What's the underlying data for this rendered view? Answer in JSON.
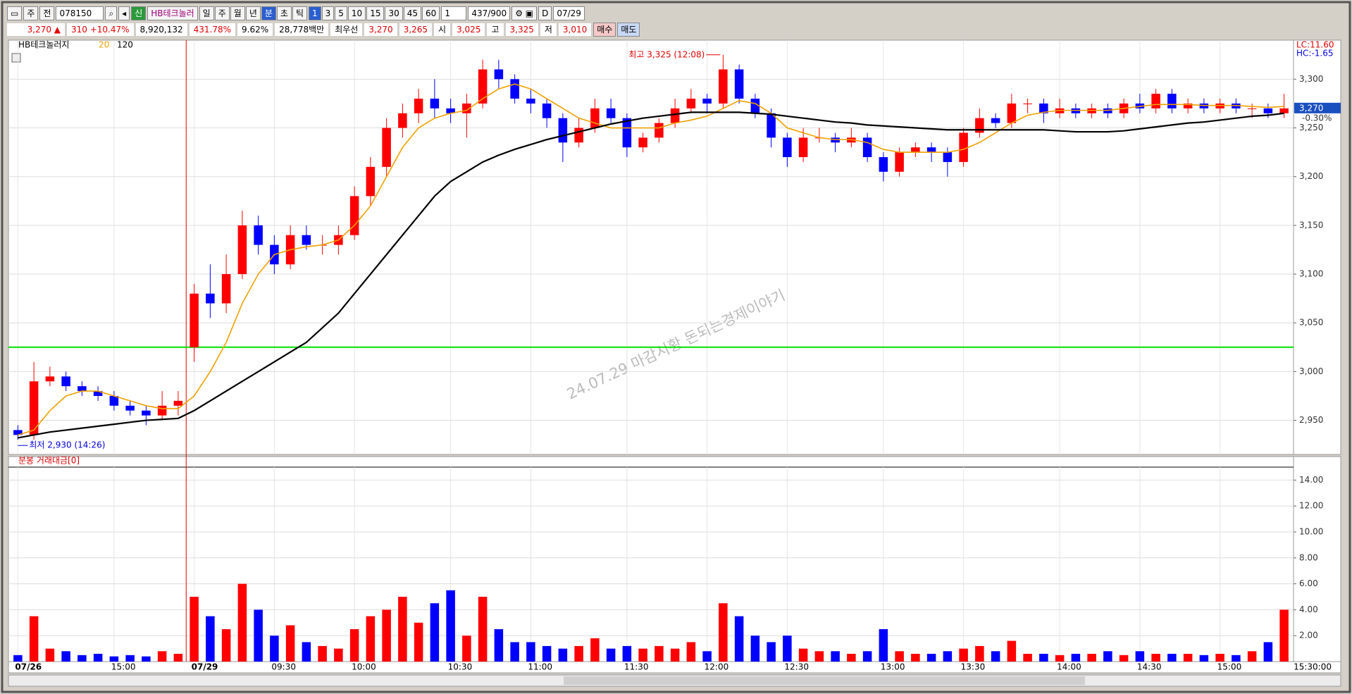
{
  "toolbar": {
    "market": "주",
    "scope": "전",
    "code": "078150",
    "tag": "신",
    "name": "HB테크놀러",
    "periods": [
      "일",
      "주",
      "월",
      "년",
      "분",
      "초",
      "틱"
    ],
    "intervals": [
      "1",
      "3",
      "5",
      "10",
      "15",
      "30",
      "45",
      "60"
    ],
    "step": "1",
    "count": "437/900",
    "d": "D",
    "date": "07/29"
  },
  "quote": {
    "price": "3,270 ▲",
    "change": "310 +10.47%",
    "volume": "8,920,132",
    "vol_ratio": "431.78%",
    "turnover": "9.62%",
    "amount": "28,778백만",
    "best_label": "최우선",
    "ask": "3,270",
    "bid": "3,265",
    "open_label": "시",
    "open": "3,025",
    "high_label": "고",
    "high": "3,325",
    "low_label": "저",
    "low": "3,010",
    "buy": "매수",
    "sell": "매도"
  },
  "chart_data": [
    {
      "type": "candlestick",
      "title": "HB테크놀러지",
      "watermark": "24.07.29 마감시황  돈되는경제이야기",
      "lc": "LC:11.60",
      "hc": "HC:-1.65",
      "last_price_label": "3,270",
      "last_change_label": "-0.30%",
      "high_note": "최고 3,325 (12:08)",
      "low_note": "최저 2,930 (14:26)",
      "axis_end_label": "15:30:00",
      "up_color": "#ff0000",
      "down_color": "#0000ff",
      "open": [
        2940,
        2935,
        2990,
        2995,
        2985,
        2980,
        2975,
        2965,
        2960,
        2955,
        2965,
        3025,
        3080,
        3070,
        3100,
        3150,
        3130,
        3110,
        3140,
        3130,
        3130,
        3140,
        3180,
        3210,
        3250,
        3265,
        3280,
        3270,
        3265,
        3275,
        3310,
        3300,
        3280,
        3275,
        3260,
        3235,
        3250,
        3270,
        3260,
        3230,
        3240,
        3255,
        3270,
        3280,
        3275,
        3310,
        3280,
        3265,
        3240,
        3220,
        3240,
        3240,
        3235,
        3240,
        3220,
        3205,
        3225,
        3230,
        3225,
        3215,
        3245,
        3260,
        3255,
        3275,
        3275,
        3265,
        3270,
        3265,
        3270,
        3265,
        3275,
        3270,
        3285,
        3270,
        3275,
        3270,
        3275,
        3270,
        3270,
        3265
      ],
      "high": [
        2945,
        3010,
        3005,
        3000,
        2990,
        2985,
        2980,
        2970,
        2965,
        2980,
        2980,
        3090,
        3110,
        3120,
        3165,
        3160,
        3140,
        3150,
        3150,
        3140,
        3150,
        3190,
        3220,
        3260,
        3275,
        3290,
        3300,
        3280,
        3285,
        3320,
        3320,
        3305,
        3290,
        3280,
        3265,
        3260,
        3280,
        3280,
        3265,
        3245,
        3260,
        3280,
        3290,
        3285,
        3325,
        3315,
        3285,
        3270,
        3245,
        3250,
        3250,
        3245,
        3250,
        3245,
        3225,
        3230,
        3235,
        3235,
        3230,
        3250,
        3270,
        3265,
        3285,
        3280,
        3280,
        3280,
        3275,
        3275,
        3275,
        3280,
        3285,
        3290,
        3290,
        3280,
        3280,
        3280,
        3280,
        3275,
        3275,
        3285
      ],
      "low": [
        2930,
        2930,
        2985,
        2980,
        2975,
        2970,
        2960,
        2955,
        2945,
        2950,
        2955,
        3010,
        3055,
        3060,
        3095,
        3120,
        3100,
        3105,
        3125,
        3120,
        3120,
        3135,
        3170,
        3200,
        3240,
        3255,
        3260,
        3255,
        3240,
        3270,
        3290,
        3275,
        3265,
        3250,
        3215,
        3230,
        3245,
        3255,
        3220,
        3225,
        3235,
        3250,
        3265,
        3265,
        3270,
        3275,
        3260,
        3230,
        3210,
        3215,
        3235,
        3225,
        3230,
        3215,
        3195,
        3200,
        3220,
        3215,
        3200,
        3210,
        3240,
        3250,
        3250,
        3265,
        3255,
        3260,
        3260,
        3260,
        3260,
        3260,
        3265,
        3265,
        3265,
        3265,
        3265,
        3265,
        3265,
        3260,
        3260,
        3260
      ],
      "close": [
        2935,
        2990,
        2995,
        2985,
        2980,
        2975,
        2965,
        2960,
        2955,
        2965,
        2970,
        3080,
        3070,
        3100,
        3150,
        3130,
        3110,
        3140,
        3130,
        3130,
        3140,
        3180,
        3210,
        3250,
        3265,
        3280,
        3270,
        3265,
        3275,
        3310,
        3300,
        3280,
        3275,
        3260,
        3235,
        3250,
        3270,
        3260,
        3230,
        3240,
        3255,
        3270,
        3280,
        3275,
        3310,
        3280,
        3265,
        3240,
        3220,
        3240,
        3240,
        3235,
        3240,
        3220,
        3205,
        3225,
        3230,
        3225,
        3215,
        3245,
        3260,
        3255,
        3275,
        3275,
        3265,
        3270,
        3265,
        3270,
        3265,
        3275,
        3270,
        3285,
        3270,
        3275,
        3270,
        3275,
        3270,
        3270,
        3265,
        3270
      ],
      "ma": [
        {
          "name": "20",
          "color": "#f0a000",
          "values": [
            2935,
            2940,
            2960,
            2975,
            2980,
            2980,
            2975,
            2970,
            2965,
            2962,
            2962,
            2975,
            3000,
            3030,
            3070,
            3100,
            3120,
            3125,
            3128,
            3130,
            3135,
            3150,
            3170,
            3200,
            3230,
            3250,
            3260,
            3265,
            3268,
            3280,
            3290,
            3295,
            3290,
            3280,
            3270,
            3260,
            3255,
            3250,
            3250,
            3250,
            3250,
            3255,
            3258,
            3262,
            3270,
            3278,
            3275,
            3265,
            3250,
            3245,
            3240,
            3238,
            3238,
            3235,
            3228,
            3225,
            3225,
            3225,
            3225,
            3228,
            3235,
            3245,
            3255,
            3263,
            3266,
            3268,
            3268,
            3268,
            3268,
            3270,
            3272,
            3274,
            3274,
            3274,
            3273,
            3273,
            3273,
            3272,
            3271,
            3272
          ]
        },
        {
          "name": "120",
          "color": "#000000",
          "values": [
            2932,
            2935,
            2938,
            2940,
            2942,
            2944,
            2946,
            2948,
            2950,
            2951,
            2952,
            2960,
            2970,
            2980,
            2990,
            3000,
            3010,
            3020,
            3030,
            3045,
            3060,
            3080,
            3100,
            3120,
            3140,
            3160,
            3180,
            3195,
            3205,
            3215,
            3222,
            3228,
            3233,
            3238,
            3242,
            3246,
            3250,
            3254,
            3257,
            3260,
            3262,
            3264,
            3266,
            3266,
            3266,
            3266,
            3265,
            3264,
            3262,
            3260,
            3258,
            3256,
            3255,
            3253,
            3252,
            3251,
            3250,
            3249,
            3248,
            3248,
            3248,
            3248,
            3248,
            3248,
            3248,
            3247,
            3246,
            3246,
            3246,
            3247,
            3249,
            3251,
            3253,
            3255,
            3256,
            3258,
            3260,
            3262,
            3263,
            3265
          ]
        }
      ],
      "level_line": {
        "value": 3025,
        "color": "#00e000"
      },
      "ylim": [
        2915,
        3340
      ],
      "yticks": [
        {
          "value": 2950,
          "label": "2,950"
        },
        {
          "value": 3000,
          "label": "3,000"
        },
        {
          "value": 3050,
          "label": "3,050"
        },
        {
          "value": 3100,
          "label": "3,100"
        },
        {
          "value": 3150,
          "label": "3,150"
        },
        {
          "value": 3200,
          "label": "3,200"
        },
        {
          "value": 3250,
          "label": "3,250"
        },
        {
          "value": 3300,
          "label": "3,300"
        }
      ],
      "xticks": [
        {
          "value": 0,
          "label": "07/26"
        },
        {
          "value": 6,
          "label": "15:00"
        },
        {
          "value": 11,
          "label": "07/29"
        },
        {
          "value": 16,
          "label": "09:30"
        },
        {
          "value": 21,
          "label": "10:00"
        },
        {
          "value": 27,
          "label": "10:30"
        },
        {
          "value": 32,
          "label": "11:00"
        },
        {
          "value": 38,
          "label": "11:30"
        },
        {
          "value": 43,
          "label": "12:00"
        },
        {
          "value": 48,
          "label": "12:30"
        },
        {
          "value": 54,
          "label": "13:00"
        },
        {
          "value": 59,
          "label": "13:30"
        },
        {
          "value": 65,
          "label": "14:00"
        },
        {
          "value": 70,
          "label": "14:30"
        },
        {
          "value": 75,
          "label": "15:00"
        }
      ],
      "grid": true
    },
    {
      "type": "bar",
      "title": "분봉 거래대금[0]",
      "values": [
        0.5,
        3.5,
        1.0,
        0.8,
        0.5,
        0.6,
        0.4,
        0.5,
        0.4,
        0.8,
        0.6,
        5.0,
        3.5,
        2.5,
        6.0,
        4.0,
        2.0,
        2.8,
        1.5,
        1.2,
        1.0,
        2.5,
        3.5,
        4.0,
        5.0,
        3.0,
        4.5,
        5.5,
        2.0,
        5.0,
        2.5,
        1.5,
        1.5,
        1.2,
        1.0,
        1.2,
        1.8,
        1.0,
        1.2,
        1.0,
        1.2,
        1.0,
        1.5,
        0.8,
        4.5,
        3.5,
        2.0,
        1.5,
        2.0,
        1.0,
        0.8,
        0.8,
        0.6,
        0.8,
        2.5,
        0.8,
        0.6,
        0.6,
        0.8,
        1.0,
        1.2,
        0.8,
        1.6,
        0.6,
        0.6,
        0.5,
        0.6,
        0.6,
        0.8,
        0.5,
        0.8,
        0.6,
        0.6,
        0.6,
        0.5,
        0.6,
        0.5,
        0.8,
        1.5,
        4.0
      ],
      "ylim": [
        0,
        15
      ],
      "yticks": [
        {
          "value": 2,
          "label": "2.00"
        },
        {
          "value": 4,
          "label": "4.00"
        },
        {
          "value": 6,
          "label": "6.00"
        },
        {
          "value": 8,
          "label": "8.00"
        },
        {
          "value": 10,
          "label": "10.00"
        },
        {
          "value": 12,
          "label": "12.00"
        },
        {
          "value": 14,
          "label": "14.00"
        }
      ],
      "grid": true
    }
  ]
}
